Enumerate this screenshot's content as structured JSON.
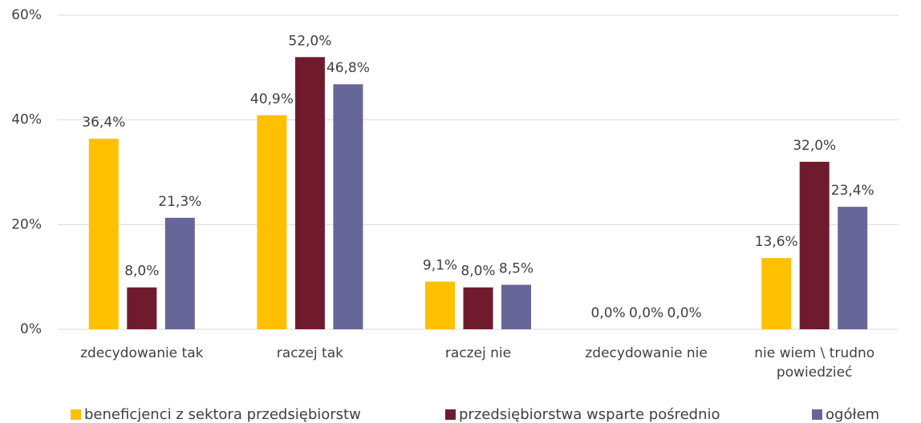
{
  "chart_data": {
    "type": "bar",
    "categories": [
      "zdecydowanie tak",
      "raczej tak",
      "raczej nie",
      "zdecydowanie nie",
      "nie wiem \\ trudno powiedzieć"
    ],
    "series": [
      {
        "name": "beneficjenci z sektora przedsiębiorstw",
        "color": "#ffc000",
        "values": [
          36.4,
          40.9,
          9.1,
          0,
          13.6
        ],
        "value_labels": [
          "36,4%",
          "40,9%",
          "9,1%",
          "0,0%",
          "13,6%"
        ]
      },
      {
        "name": "przedsiębiorstwa wsparte pośrednio",
        "color": "#701b2d",
        "values": [
          8.0,
          52.0,
          8.0,
          0,
          32.0
        ],
        "value_labels": [
          "8,0%",
          "52,0%",
          "8,0%",
          "0,0%",
          "32,0%"
        ]
      },
      {
        "name": "ogółem",
        "color": "#666699",
        "values": [
          21.3,
          46.8,
          8.5,
          0,
          23.4
        ],
        "value_labels": [
          "21,3%",
          "46,8%",
          "8,5%",
          "0,0%",
          "23,4%"
        ]
      }
    ],
    "ylim": [
      0,
      60
    ],
    "yticks": [
      {
        "value": 0,
        "label": "0%"
      },
      {
        "value": 20,
        "label": "20%"
      },
      {
        "value": 40,
        "label": "40%"
      },
      {
        "value": 60,
        "label": "60%"
      }
    ],
    "grid": true,
    "legend": "bottom"
  }
}
